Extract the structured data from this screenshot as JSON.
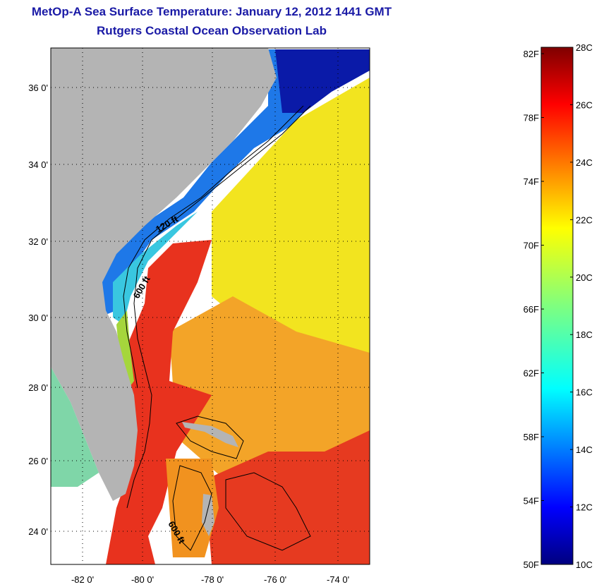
{
  "header": {
    "title": "MetOp-A Sea Surface Temperature:  January 12, 2012 1441 GMT",
    "subtitle": "Rutgers Coastal Ocean Observation Lab"
  },
  "map": {
    "lat_labels": [
      "36 0'",
      "34 0'",
      "32 0'",
      "30 0'",
      "28 0'",
      "26 0'",
      "24 0'"
    ],
    "lon_labels": [
      "-82 0'",
      "-80 0'",
      "-78 0'",
      "-76 0'",
      "-74 0'"
    ],
    "contour_labels": [
      "120 ft",
      "600 ft",
      "600 ft"
    ],
    "colors": {
      "land": "#b4b4b4",
      "ocean_nodata": "#ffffff",
      "frame": "#000000"
    }
  },
  "colorbar": {
    "fahrenheit_labels": [
      "82F",
      "78F",
      "74F",
      "70F",
      "66F",
      "62F",
      "58F",
      "54F",
      "50F"
    ],
    "celsius_labels": [
      "28C",
      "26C",
      "24C",
      "22C",
      "20C",
      "18C",
      "16C",
      "14C",
      "12C",
      "10C"
    ],
    "range_c": [
      10,
      28
    ],
    "range_f": [
      50,
      82.4
    ]
  }
}
